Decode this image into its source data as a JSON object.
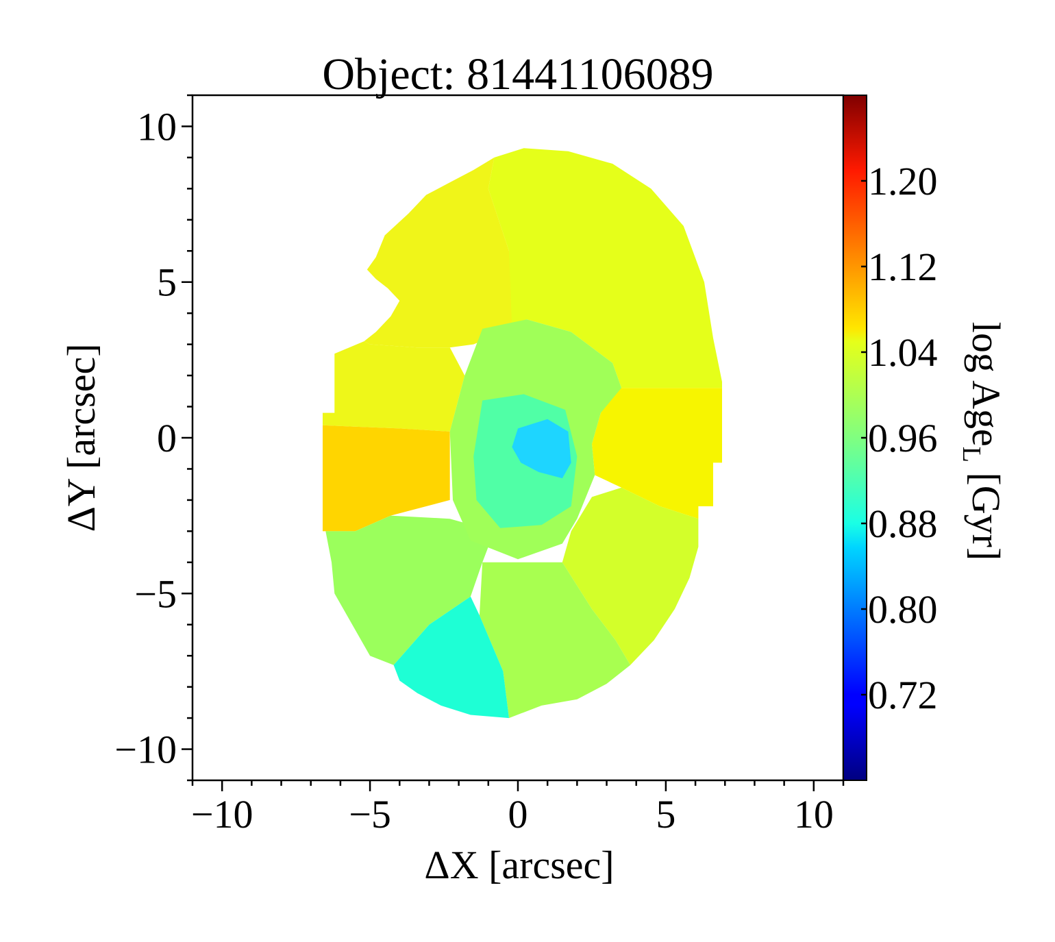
{
  "chart_data": {
    "type": "heatmap",
    "title": "Object: 81441106089",
    "xlabel": "ΔX [arcsec]",
    "ylabel": "ΔY [arcsec]",
    "xlim": [
      -11,
      11
    ],
    "ylim": [
      -11,
      11
    ],
    "x_ticks": [
      -10,
      -5,
      0,
      5,
      10
    ],
    "x_tick_labels": [
      "−10",
      "−5",
      "0",
      "5",
      "10"
    ],
    "y_ticks": [
      -10,
      -5,
      0,
      5,
      10
    ],
    "y_tick_labels": [
      "−10",
      "−5",
      "0",
      "5",
      "10"
    ],
    "colorbar": {
      "label": "log Age",
      "label_sub": "L",
      "label_unit": " [Gyr]",
      "colormap": "jet",
      "vmin": 0.64,
      "vmax": 1.28,
      "ticks": [
        0.72,
        0.8,
        0.88,
        0.96,
        1.04,
        1.12,
        1.2
      ],
      "tick_labels": [
        "0.72",
        "0.80",
        "0.88",
        "0.96",
        "1.04",
        "1.12",
        "1.20"
      ]
    },
    "regions": [
      {
        "name": "top-main",
        "value": 1.045,
        "color": "#e5ff1a",
        "polygon": [
          [
            -0.8,
            9.0
          ],
          [
            0.2,
            9.3
          ],
          [
            1.7,
            9.2
          ],
          [
            3.2,
            8.8
          ],
          [
            4.5,
            8.0
          ],
          [
            5.6,
            6.8
          ],
          [
            6.3,
            5.0
          ],
          [
            6.6,
            3.2
          ],
          [
            6.9,
            1.8
          ],
          [
            6.9,
            1.6
          ],
          [
            3.5,
            1.6
          ],
          [
            3.2,
            2.4
          ],
          [
            1.8,
            3.4
          ],
          [
            0.3,
            3.8
          ],
          [
            -0.8,
            3.5
          ],
          [
            -0.3,
            6.0
          ],
          [
            -1.0,
            8.0
          ]
        ]
      },
      {
        "name": "top-left",
        "value": 1.035,
        "color": "#f0f519",
        "polygon": [
          [
            -0.8,
            9.0
          ],
          [
            -1.0,
            8.0
          ],
          [
            -0.3,
            6.0
          ],
          [
            -0.2,
            3.5
          ],
          [
            -1.5,
            3.0
          ],
          [
            -2.3,
            2.9
          ],
          [
            -3.4,
            2.9
          ],
          [
            -5.0,
            3.0
          ],
          [
            -5.2,
            3.1
          ],
          [
            -4.8,
            3.4
          ],
          [
            -4.3,
            3.9
          ],
          [
            -4.0,
            4.4
          ],
          [
            -4.4,
            4.8
          ],
          [
            -4.8,
            5.1
          ],
          [
            -5.1,
            5.4
          ],
          [
            -4.8,
            5.8
          ],
          [
            -4.5,
            6.5
          ],
          [
            -3.7,
            7.2
          ],
          [
            -3.1,
            7.8
          ],
          [
            -2.3,
            8.2
          ],
          [
            -1.5,
            8.6
          ]
        ]
      },
      {
        "name": "left-upper",
        "value": 1.035,
        "color": "#eef719",
        "polygon": [
          [
            -5.2,
            3.1
          ],
          [
            -6.2,
            2.7
          ],
          [
            -6.2,
            0.8
          ],
          [
            -6.6,
            0.8
          ],
          [
            -6.6,
            0.4
          ],
          [
            -4.0,
            0.3
          ],
          [
            -2.3,
            0.2
          ],
          [
            -1.8,
            2.0
          ],
          [
            -2.3,
            2.9
          ],
          [
            -3.4,
            2.9
          ],
          [
            -5.0,
            3.0
          ]
        ]
      },
      {
        "name": "left-orange",
        "value": 1.1,
        "color": "#ffd500",
        "polygon": [
          [
            -6.6,
            0.8
          ],
          [
            -6.6,
            -3.0
          ],
          [
            -5.5,
            -3.0
          ],
          [
            -4.3,
            -2.5
          ],
          [
            -2.3,
            -2.0
          ],
          [
            -2.3,
            -1.0
          ],
          [
            -2.3,
            0.2
          ],
          [
            -4.0,
            0.3
          ],
          [
            -6.6,
            0.4
          ]
        ]
      },
      {
        "name": "right-yellow",
        "value": 1.055,
        "color": "#f7f500",
        "polygon": [
          [
            3.1,
            1.6
          ],
          [
            6.9,
            1.6
          ],
          [
            6.9,
            -0.8
          ],
          [
            6.6,
            -0.8
          ],
          [
            6.6,
            -2.2
          ],
          [
            6.1,
            -2.2
          ],
          [
            6.1,
            -2.6
          ],
          [
            4.8,
            -2.2
          ],
          [
            3.5,
            -1.6
          ],
          [
            2.6,
            -1.2
          ],
          [
            2.5,
            -0.2
          ],
          [
            2.8,
            0.8
          ]
        ]
      },
      {
        "name": "right-lower",
        "value": 1.02,
        "color": "#d3ff2a",
        "polygon": [
          [
            6.1,
            -2.6
          ],
          [
            6.1,
            -3.5
          ],
          [
            5.8,
            -4.5
          ],
          [
            5.3,
            -5.5
          ],
          [
            4.6,
            -6.5
          ],
          [
            3.8,
            -7.3
          ],
          [
            3.3,
            -6.5
          ],
          [
            2.5,
            -5.5
          ],
          [
            1.5,
            -4.0
          ],
          [
            1.8,
            -3.0
          ],
          [
            2.5,
            -1.9
          ],
          [
            3.5,
            -1.6
          ],
          [
            4.8,
            -2.2
          ]
        ]
      },
      {
        "name": "bottom-center",
        "value": 0.985,
        "color": "#a8ff50",
        "polygon": [
          [
            3.8,
            -7.3
          ],
          [
            3.0,
            -7.9
          ],
          [
            2.0,
            -8.4
          ],
          [
            0.8,
            -8.6
          ],
          [
            -0.3,
            -9.0
          ],
          [
            -0.5,
            -7.5
          ],
          [
            -1.3,
            -5.7
          ],
          [
            -1.2,
            -4.0
          ],
          [
            1.5,
            -4.0
          ],
          [
            2.5,
            -5.5
          ],
          [
            3.3,
            -6.5
          ]
        ]
      },
      {
        "name": "bottom-left",
        "value": 0.975,
        "color": "#9bff5c",
        "polygon": [
          [
            -6.5,
            -3.0
          ],
          [
            -6.3,
            -4.0
          ],
          [
            -6.2,
            -5.0
          ],
          [
            -5.6,
            -6.0
          ],
          [
            -5.0,
            -7.0
          ],
          [
            -4.2,
            -7.3
          ],
          [
            -3.0,
            -6.0
          ],
          [
            -1.6,
            -5.1
          ],
          [
            -1.2,
            -4.0
          ],
          [
            -0.8,
            -3.0
          ],
          [
            -2.3,
            -2.6
          ],
          [
            -4.3,
            -2.5
          ],
          [
            -5.5,
            -3.0
          ]
        ]
      },
      {
        "name": "bottom-cyan",
        "value": 0.895,
        "color": "#1effd5",
        "polygon": [
          [
            -4.2,
            -7.3
          ],
          [
            -4.0,
            -7.8
          ],
          [
            -3.4,
            -8.2
          ],
          [
            -2.6,
            -8.6
          ],
          [
            -1.6,
            -8.9
          ],
          [
            -0.3,
            -9.0
          ],
          [
            -0.5,
            -7.5
          ],
          [
            -1.3,
            -5.7
          ],
          [
            -1.6,
            -5.1
          ],
          [
            -3.0,
            -6.0
          ]
        ]
      },
      {
        "name": "core-ring",
        "value": 0.98,
        "color": "#a0ff58",
        "polygon": [
          [
            -2.3,
            0.2
          ],
          [
            -1.8,
            2.0
          ],
          [
            -1.2,
            3.5
          ],
          [
            0.3,
            3.8
          ],
          [
            1.8,
            3.4
          ],
          [
            3.2,
            2.4
          ],
          [
            3.5,
            1.6
          ],
          [
            2.8,
            0.8
          ],
          [
            2.5,
            -0.2
          ],
          [
            2.6,
            -1.2
          ],
          [
            2.0,
            -2.6
          ],
          [
            1.5,
            -3.4
          ],
          [
            0.0,
            -3.9
          ],
          [
            -1.6,
            -3.3
          ],
          [
            -2.2,
            -2.0
          ]
        ]
      },
      {
        "name": "core-inner",
        "value": 0.93,
        "color": "#50ffa6",
        "polygon": [
          [
            -1.2,
            1.2
          ],
          [
            0.2,
            1.4
          ],
          [
            1.6,
            0.9
          ],
          [
            2.0,
            -0.6
          ],
          [
            1.8,
            -2.2
          ],
          [
            0.8,
            -2.8
          ],
          [
            -0.6,
            -2.9
          ],
          [
            -1.4,
            -2.0
          ],
          [
            -1.5,
            -0.6
          ]
        ]
      },
      {
        "name": "core-center",
        "value": 0.87,
        "color": "#1ed5ff",
        "polygon": [
          [
            0.0,
            0.3
          ],
          [
            1.0,
            0.6
          ],
          [
            1.7,
            0.2
          ],
          [
            1.8,
            -0.8
          ],
          [
            1.5,
            -1.3
          ],
          [
            0.7,
            -1.1
          ],
          [
            0.1,
            -0.8
          ],
          [
            -0.2,
            -0.3
          ]
        ]
      }
    ]
  }
}
